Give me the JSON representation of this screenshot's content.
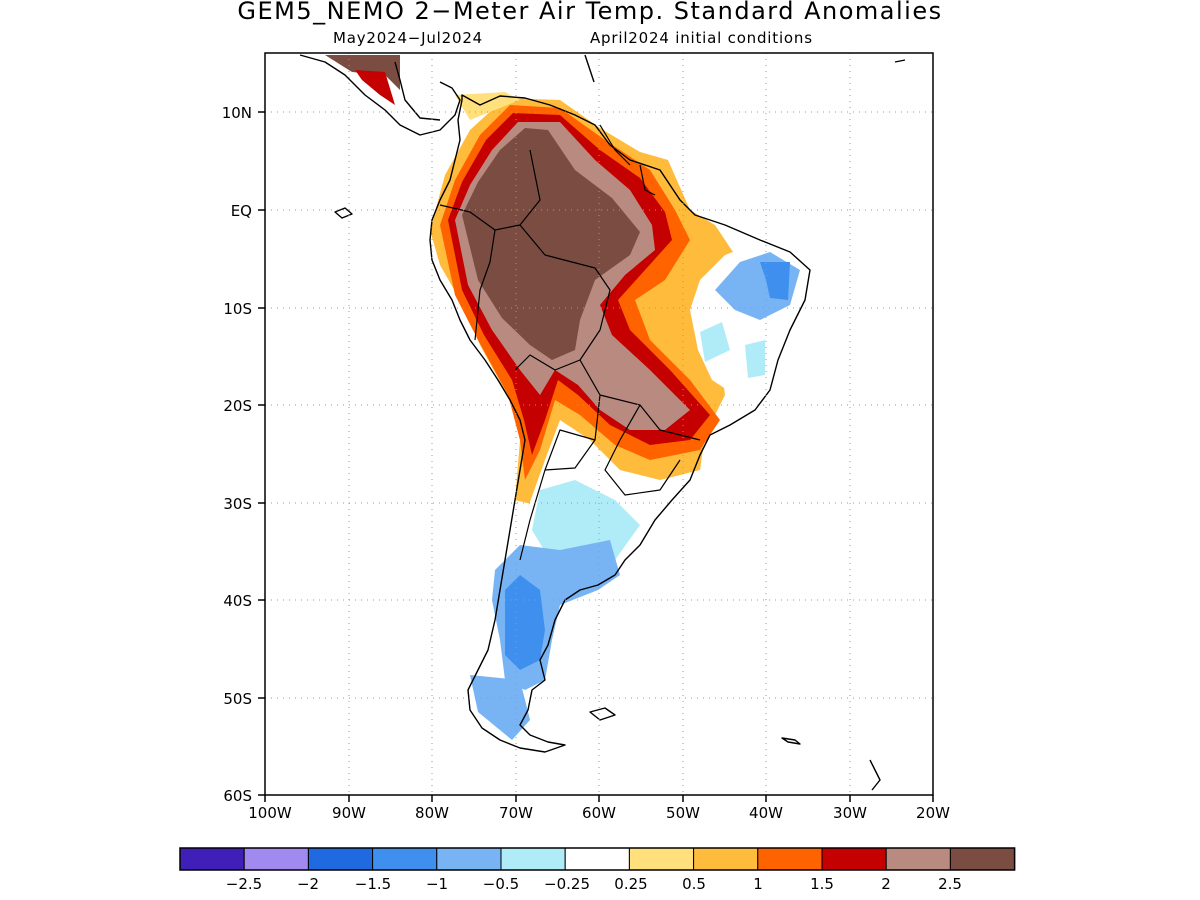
{
  "title": "GEM5_NEMO 2−Meter Air Temp. Standard Anomalies",
  "subtitle_left": "May2024−Jul2024",
  "subtitle_right": "April2024 initial conditions",
  "map": {
    "lat_labels": [
      "10N",
      "EQ",
      "10S",
      "20S",
      "30S",
      "40S",
      "50S",
      "60S"
    ],
    "lon_labels": [
      "100W",
      "90W",
      "80W",
      "70W",
      "60W",
      "50W",
      "40W",
      "30W",
      "20W"
    ],
    "grid_style": "dotted"
  },
  "colorbar": {
    "colors": [
      "#3f1fb8",
      "#a08af0",
      "#1f6ae0",
      "#3f90ee",
      "#78b4f4",
      "#b0ecf8",
      "#ffffff",
      "#ffe07c",
      "#ffbb3c",
      "#ff6300",
      "#c40000",
      "#b88a80",
      "#7b4d42"
    ],
    "labels": [
      "−2.5",
      "−2",
      "−1.5",
      "−1",
      "−0.5",
      "−0.25",
      "0.25",
      "0.5",
      "1",
      "1.5",
      "2",
      "2.5"
    ]
  }
}
